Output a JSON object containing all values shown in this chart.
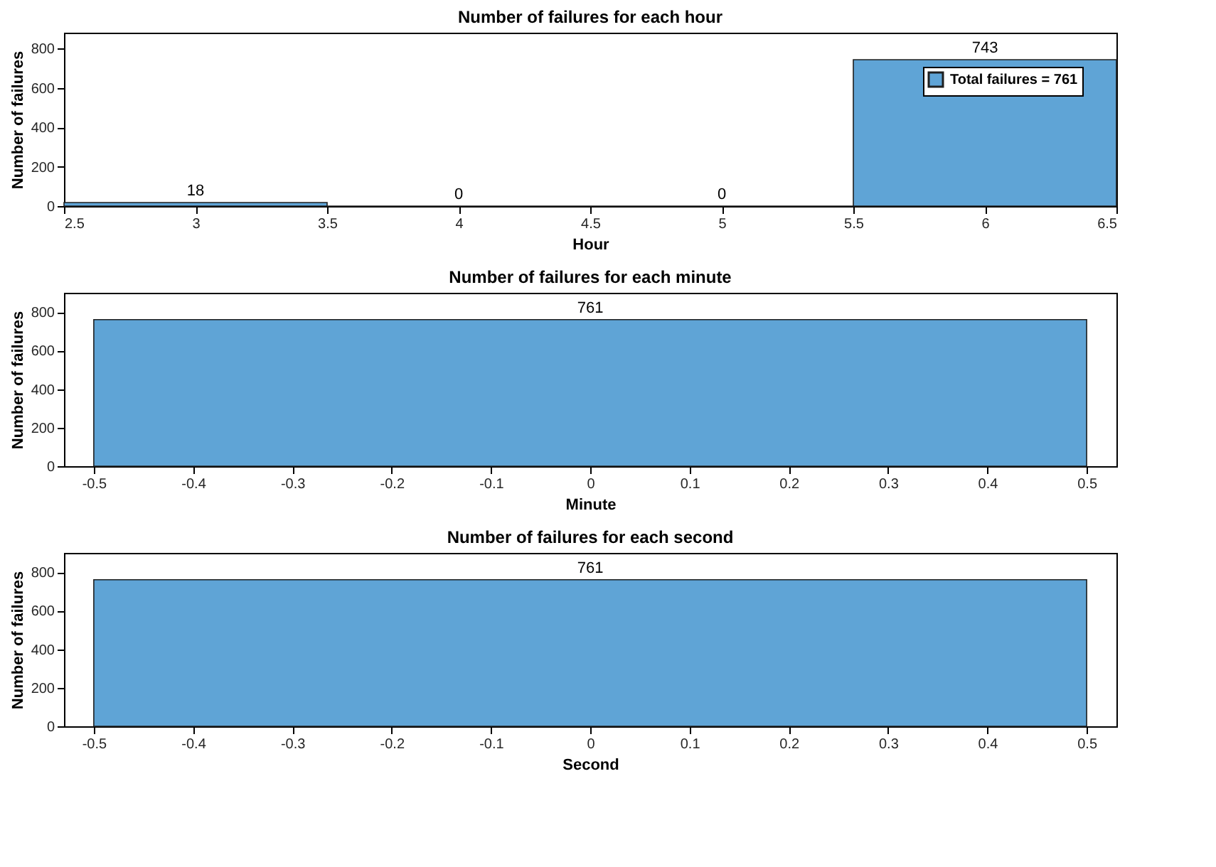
{
  "chart_data": [
    {
      "type": "histogram",
      "title": "Number of failures for each hour",
      "xlabel": "Hour",
      "ylabel": "Number of failures",
      "bins": [
        2.5,
        3.5,
        4.5,
        5.5,
        6.5
      ],
      "series": [
        {
          "name": "Total failures = 761",
          "color": "#5fa4d6",
          "values": [
            18,
            0,
            0,
            743
          ]
        }
      ],
      "xlim": [
        2.5,
        6.5
      ],
      "xticks": [
        2.5,
        3,
        3.5,
        4,
        4.5,
        5,
        5.5,
        6,
        6.5
      ],
      "ylim": [
        0,
        880
      ],
      "yticks": [
        0,
        200,
        400,
        600,
        800
      ],
      "data_labels": true,
      "legend": "top right",
      "grid": false
    },
    {
      "type": "histogram",
      "title": "Number of failures for each minute",
      "xlabel": "Minute",
      "ylabel": "Number of failures",
      "bins": [
        -0.5,
        0.5
      ],
      "series": [
        {
          "name": "Total failures = 761",
          "color": "#5fa4d6",
          "values": [
            761
          ]
        }
      ],
      "xlim": [
        -0.53,
        0.53
      ],
      "xticks": [
        -0.5,
        -0.4,
        -0.3,
        -0.2,
        -0.1,
        0,
        0.1,
        0.2,
        0.3,
        0.4,
        0.5
      ],
      "ylim": [
        0,
        900
      ],
      "yticks": [
        0,
        200,
        400,
        600,
        800
      ],
      "data_labels": true,
      "legend": "top right",
      "grid": false
    },
    {
      "type": "histogram",
      "title": "Number of failures for each second",
      "xlabel": "Second",
      "ylabel": "Number of failures",
      "bins": [
        -0.5,
        0.5
      ],
      "series": [
        {
          "name": "Total failures = 761",
          "color": "#5fa4d6",
          "values": [
            761
          ]
        }
      ],
      "xlim": [
        -0.53,
        0.53
      ],
      "xticks": [
        -0.5,
        -0.4,
        -0.3,
        -0.2,
        -0.1,
        0,
        0.1,
        0.2,
        0.3,
        0.4,
        0.5
      ],
      "ylim": [
        0,
        900
      ],
      "yticks": [
        0,
        200,
        400,
        600,
        800
      ],
      "data_labels": true,
      "legend": "top right",
      "grid": false
    }
  ]
}
